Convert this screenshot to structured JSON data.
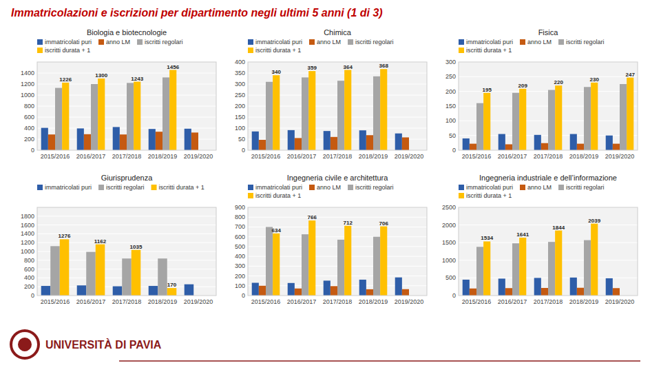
{
  "title": "Immatricolazioni e iscrizioni per dipartimento negli ultimi 5 anni (1 di 3)",
  "annotations": [
    "UNIVERSITÀ DI PAVIA"
  ],
  "chart_data": [
    {
      "type": "bar",
      "title": "Biologia e biotecnologie",
      "categories": [
        "2015/2016",
        "2016/2017",
        "2017/2018",
        "2018/2019",
        "2019/2020"
      ],
      "series": [
        {
          "name": "immatricolati puri",
          "color": "#2E5DA8",
          "values": [
            405,
            395,
            420,
            385,
            390
          ]
        },
        {
          "name": "anno LM",
          "color": "#C55A11",
          "values": [
            285,
            290,
            285,
            335,
            320
          ]
        },
        {
          "name": "iscritti regolari",
          "color": "#A5A5A5",
          "values": [
            1130,
            1200,
            1220,
            1320,
            0
          ]
        },
        {
          "name": "iscritti durata + 1",
          "color": "#FFC000",
          "values": [
            1226,
            1300,
            1243,
            1456,
            0
          ],
          "data_labels": true,
          "value_labels": [
            "1226",
            "1300",
            "1243",
            "1456",
            null
          ]
        }
      ],
      "ylim": [
        0,
        1600
      ],
      "yticks": [
        0,
        200,
        400,
        600,
        800,
        1000,
        1200,
        1400
      ],
      "grid": true,
      "legend": "top"
    },
    {
      "type": "bar",
      "title": "Chimica",
      "categories": [
        "2015/2016",
        "2016/2017",
        "2017/2018",
        "2018/2019",
        "2019/2020"
      ],
      "series": [
        {
          "name": "immatricolati puri",
          "color": "#2E5DA8",
          "values": [
            85,
            91,
            87,
            90,
            76
          ]
        },
        {
          "name": "anno LM",
          "color": "#C55A11",
          "values": [
            47,
            55,
            60,
            68,
            58
          ]
        },
        {
          "name": "iscritti regolari",
          "color": "#A5A5A5",
          "values": [
            310,
            330,
            315,
            335,
            0
          ]
        },
        {
          "name": "iscritti durata + 1",
          "color": "#FFC000",
          "values": [
            340,
            359,
            364,
            368,
            0
          ],
          "data_labels": true,
          "value_labels": [
            "340",
            "359",
            "364",
            "368",
            null
          ]
        }
      ],
      "ylim": [
        0,
        400
      ],
      "yticks": [
        0,
        50,
        100,
        150,
        200,
        250,
        300,
        350,
        400
      ],
      "grid": true,
      "legend": "top"
    },
    {
      "type": "bar",
      "title": "Fisica",
      "categories": [
        "2015/2016",
        "2016/2017",
        "2017/2018",
        "2018/2019",
        "2019/2020"
      ],
      "series": [
        {
          "name": "immatricolati puri",
          "color": "#2E5DA8",
          "values": [
            40,
            55,
            52,
            55,
            50
          ]
        },
        {
          "name": "anno LM",
          "color": "#C55A11",
          "values": [
            22,
            20,
            24,
            22,
            22
          ]
        },
        {
          "name": "iscritti regolari",
          "color": "#A5A5A5",
          "values": [
            160,
            195,
            205,
            215,
            225
          ]
        },
        {
          "name": "iscritti durata + 1",
          "color": "#FFC000",
          "values": [
            195,
            209,
            220,
            230,
            247
          ],
          "data_labels": true,
          "value_labels": [
            "195",
            "209",
            "220",
            "230",
            "247"
          ]
        }
      ],
      "ylim": [
        0,
        300
      ],
      "yticks": [
        0,
        50,
        100,
        150,
        200,
        250,
        300
      ],
      "grid": true,
      "legend": "top"
    },
    {
      "type": "bar",
      "title": "Giurisprudenza",
      "categories": [
        "2015/2016",
        "2016/2017",
        "2017/2018",
        "2018/2019",
        "2019/2020"
      ],
      "series": [
        {
          "name": "immatricolati puri",
          "color": "#2E5DA8",
          "values": [
            218,
            230,
            210,
            218,
            255
          ]
        },
        {
          "name": "iscritti regolari",
          "color": "#A5A5A5",
          "values": [
            1120,
            990,
            840,
            840,
            0
          ]
        },
        {
          "name": "iscritti durata + 1",
          "color": "#FFC000",
          "values": [
            1276,
            1162,
            1035,
            170,
            0
          ],
          "data_labels": true,
          "value_labels": [
            "1276",
            "1162",
            "1035",
            "170",
            null
          ]
        }
      ],
      "ylim": [
        0,
        2000
      ],
      "yticks": [
        0,
        200,
        400,
        600,
        800,
        1000,
        1200,
        1400,
        1600,
        1800
      ],
      "grid": true,
      "legend": "top"
    },
    {
      "type": "bar",
      "title": "Ingegneria civile e architettura",
      "categories": [
        "2015/2016",
        "2016/2017",
        "2017/2018",
        "2018/2019",
        "2019/2020"
      ],
      "series": [
        {
          "name": "immatricolati puri",
          "color": "#2E5DA8",
          "values": [
            130,
            128,
            152,
            162,
            185
          ]
        },
        {
          "name": "anno LM",
          "color": "#C55A11",
          "values": [
            100,
            72,
            96,
            64,
            65
          ]
        },
        {
          "name": "iscritti regolari",
          "color": "#A5A5A5",
          "values": [
            700,
            625,
            570,
            600,
            0
          ]
        },
        {
          "name": "iscritti durata + 1",
          "color": "#FFC000",
          "values": [
            634,
            766,
            712,
            706,
            0
          ],
          "data_labels": true,
          "value_labels": [
            "634",
            "766",
            "712",
            "706",
            null
          ]
        }
      ],
      "ylim": [
        0,
        900
      ],
      "yticks": [
        0,
        100,
        200,
        300,
        400,
        500,
        600,
        700,
        800,
        900
      ],
      "grid": true,
      "legend": "top"
    },
    {
      "type": "bar",
      "title": "Ingegneria industriale e dell’informazione",
      "categories": [
        "2015/2016",
        "2016/2017",
        "2017/2018",
        "2018/2019",
        "2019/2020"
      ],
      "series": [
        {
          "name": "immatricolati puri",
          "color": "#2E5DA8",
          "values": [
            450,
            480,
            500,
            510,
            490
          ]
        },
        {
          "name": "anno LM",
          "color": "#C55A11",
          "values": [
            200,
            210,
            215,
            220,
            210
          ]
        },
        {
          "name": "iscritti regolari",
          "color": "#A5A5A5",
          "values": [
            1380,
            1480,
            1520,
            1570,
            0
          ]
        },
        {
          "name": "iscritti durata + 1",
          "color": "#FFC000",
          "values": [
            1534,
            1641,
            1844,
            2039,
            0
          ],
          "data_labels": true,
          "value_labels": [
            "1534",
            "1641",
            "1844",
            "2039",
            null
          ]
        }
      ],
      "ylim": [
        0,
        2500
      ],
      "yticks": [
        0,
        500,
        1000,
        1500,
        2000,
        2500
      ],
      "grid": true,
      "legend": "top"
    }
  ]
}
